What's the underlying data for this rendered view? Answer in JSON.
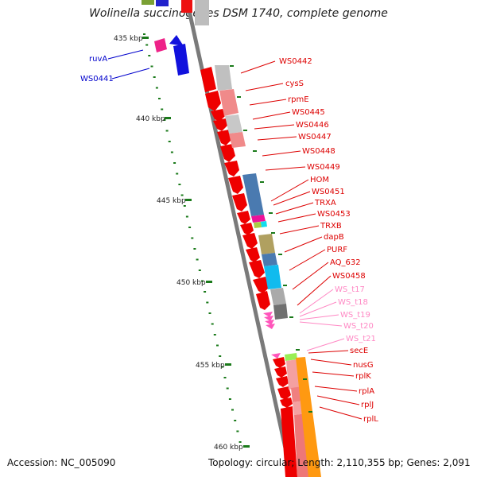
{
  "title": "Wolinella succinogenes DSM 1740, complete genome",
  "accession": "Accession: NC_005090",
  "summary": "Topology: circular; Length: 2,110,355 bp; Genes: 2,091",
  "kbp_labels": [
    "435 kbp",
    "440 kbp",
    "445 kbp",
    "450 kbp",
    "455 kbp",
    "460 kbp"
  ],
  "gene_labels": [
    {
      "text": "ruvA",
      "color": "#0000cc"
    },
    {
      "text": "WS0441",
      "color": "#0000cc"
    },
    {
      "text": "WS0442",
      "color": "#dd0000"
    },
    {
      "text": "cysS",
      "color": "#dd0000"
    },
    {
      "text": "rpmE",
      "color": "#dd0000"
    },
    {
      "text": "WS0445",
      "color": "#dd0000"
    },
    {
      "text": "WS0446",
      "color": "#dd0000"
    },
    {
      "text": "WS0447",
      "color": "#dd0000"
    },
    {
      "text": "WS0448",
      "color": "#dd0000"
    },
    {
      "text": "WS0449",
      "color": "#dd0000"
    },
    {
      "text": "HOM",
      "color": "#dd0000"
    },
    {
      "text": "WS0451",
      "color": "#dd0000"
    },
    {
      "text": "TRXA",
      "color": "#dd0000"
    },
    {
      "text": "WS0453",
      "color": "#dd0000"
    },
    {
      "text": "TRXB",
      "color": "#dd0000"
    },
    {
      "text": "dapB",
      "color": "#dd0000"
    },
    {
      "text": "PURF",
      "color": "#dd0000"
    },
    {
      "text": "AQ_632",
      "color": "#dd0000"
    },
    {
      "text": "WS0458",
      "color": "#dd0000"
    },
    {
      "text": "WS_t17",
      "color": "#ff88c4"
    },
    {
      "text": "WS_t18",
      "color": "#ff88c4"
    },
    {
      "text": "WS_t19",
      "color": "#ff88c4"
    },
    {
      "text": "WS_t20",
      "color": "#ff88c4"
    },
    {
      "text": "WS_t21",
      "color": "#ff88c4"
    },
    {
      "text": "secE",
      "color": "#dd0000"
    },
    {
      "text": "nusG",
      "color": "#dd0000"
    },
    {
      "text": "rplK",
      "color": "#dd0000"
    },
    {
      "text": "rplA",
      "color": "#dd0000"
    },
    {
      "text": "rplJ",
      "color": "#dd0000"
    },
    {
      "text": "rplL",
      "color": "#dd0000"
    }
  ],
  "colors": {
    "forward_strand": "#ee0000",
    "reverse_strand": "#0000dd",
    "trna": "#ff66aa",
    "tick": "#1a7a1a",
    "backbone": "#808080"
  }
}
